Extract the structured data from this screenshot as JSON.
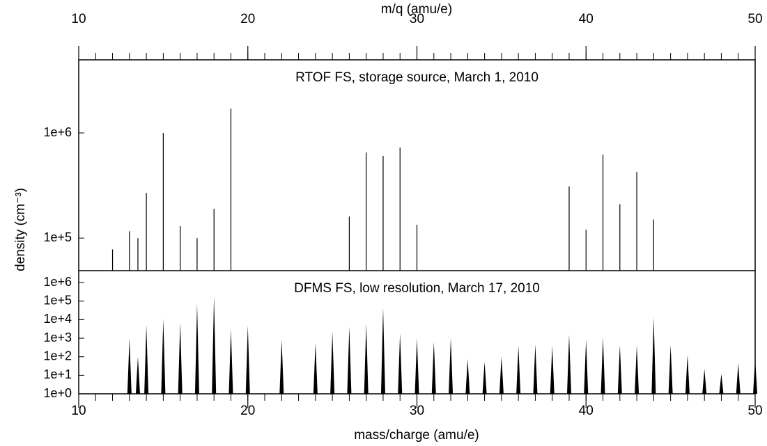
{
  "chart_data": [
    {
      "type": "stem",
      "title": "RTOF FS, storage source, March 1, 2010",
      "xlabel": "m/q (amu/e)",
      "ylabel": "density (cm⁻³)",
      "log_y": true,
      "color": "#000000",
      "xlim": [
        10,
        50
      ],
      "xticks": [
        10,
        20,
        30,
        40,
        50
      ],
      "xminor_step": 1,
      "ylim": [
        49000,
        4950000
      ],
      "yticks": [
        {
          "value": 100000,
          "label": "1e+5"
        },
        {
          "value": 1000000,
          "label": "1e+6"
        }
      ],
      "x": [
        12,
        13,
        13.5,
        14,
        15,
        16,
        17,
        18,
        19,
        26,
        27,
        28,
        29,
        30,
        39,
        40,
        41,
        42,
        43,
        44
      ],
      "values": [
        78000,
        116000,
        100000,
        269000,
        1000000,
        130000,
        100000,
        190000,
        1700000,
        160000,
        650000,
        605000,
        725000,
        134000,
        310000,
        120000,
        620000,
        210000,
        425000,
        150000
      ]
    },
    {
      "type": "peak",
      "title": "DFMS FS, low resolution, March 17, 2010",
      "xlabel": "mass/charge (amu/e)",
      "log_y": true,
      "color": "#000000",
      "xlim": [
        10,
        50
      ],
      "xticks": [
        10,
        20,
        30,
        40,
        50
      ],
      "xminor_step": 1,
      "ylim": [
        1,
        4400000
      ],
      "yticks": [
        {
          "value": 1,
          "label": "1e+0"
        },
        {
          "value": 10,
          "label": "1e+1"
        },
        {
          "value": 100,
          "label": "1e+2"
        },
        {
          "value": 1000,
          "label": "1e+3"
        },
        {
          "value": 10000,
          "label": "1e+4"
        },
        {
          "value": 100000,
          "label": "1e+5"
        },
        {
          "value": 1000000,
          "label": "1e+6"
        }
      ],
      "x": [
        13,
        13.5,
        14,
        15,
        16,
        17,
        18,
        19,
        20,
        22,
        24,
        25,
        26,
        27,
        28,
        29,
        30,
        31,
        32,
        33,
        34,
        35,
        36,
        37,
        38,
        39,
        40,
        41,
        42,
        43,
        44,
        45,
        46,
        47,
        48,
        49,
        50
      ],
      "values": [
        1000,
        100,
        5100,
        11000,
        7300,
        75000,
        190000,
        3100,
        4700,
        850,
        550,
        2200,
        4300,
        6100,
        45000,
        1800,
        1000,
        640,
        1000,
        75,
        53,
        105,
        390,
        460,
        390,
        1550,
        850,
        1100,
        420,
        420,
        13000,
        420,
        125,
        22,
        12,
        45,
        80
      ]
    }
  ]
}
